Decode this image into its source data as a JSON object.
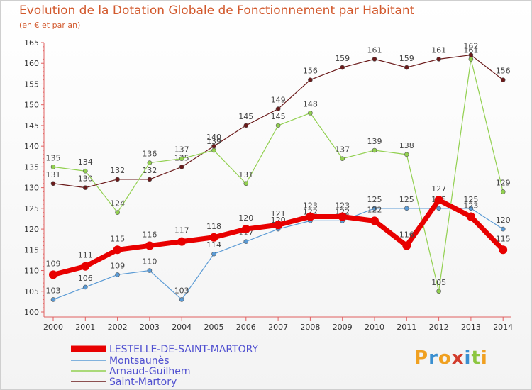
{
  "header": {
    "title": "Evolution de la Dotation Globale de Fonctionnement par Habitant",
    "subtitle": "(en € et par an)"
  },
  "logo": {
    "text": "Proxiti",
    "letters": [
      {
        "ch": "P",
        "color": "#f0a020"
      },
      {
        "ch": "r",
        "color": "#3a8fd0"
      },
      {
        "ch": "o",
        "color": "#f0a020"
      },
      {
        "ch": "x",
        "color": "#d23c2c"
      },
      {
        "ch": "i",
        "color": "#3a8fd0"
      },
      {
        "ch": "t",
        "color": "#8cc63f"
      },
      {
        "ch": "i",
        "color": "#f0a020"
      }
    ]
  },
  "chart_data": {
    "type": "line",
    "title": "Evolution de la Dotation Globale de Fonctionnement par Habitant",
    "subtitle": "(en € et par an)",
    "xlabel": "",
    "ylabel": "",
    "categories": [
      "2000",
      "2001",
      "2002",
      "2003",
      "2004",
      "2005",
      "2006",
      "2007",
      "2008",
      "2009",
      "2010",
      "2011",
      "2012",
      "2013",
      "2014"
    ],
    "ylim": [
      100,
      165
    ],
    "yticks": [
      100,
      105,
      110,
      115,
      120,
      125,
      130,
      135,
      140,
      145,
      150,
      155,
      160,
      165
    ],
    "grid": false,
    "legend": "bottom-left",
    "series": [
      {
        "name": "LESTELLE-DE-SAINT-MARTORY",
        "color": "#e80000",
        "values": [
          109,
          111,
          115,
          116,
          117,
          118,
          120,
          121,
          123,
          123,
          122,
          116,
          127,
          123,
          115
        ],
        "labels": [
          "109",
          "111",
          "115",
          "116",
          "117",
          "118",
          "120",
          "121",
          "123",
          "123",
          "122",
          "116",
          "127",
          "123",
          "115"
        ]
      },
      {
        "name": "Montsaunès",
        "color": "#5b9bd5",
        "values": [
          103,
          106,
          109,
          110,
          103,
          114,
          117,
          120,
          122,
          122,
          125,
          125,
          125,
          125,
          120
        ],
        "labels": [
          "103",
          "106",
          "109",
          "110",
          "103",
          "114",
          "117",
          "120",
          "122",
          "122",
          "125",
          "125",
          "125",
          "125",
          "120"
        ]
      },
      {
        "name": "Arnaud-Guilhem",
        "color": "#92d050",
        "values": [
          135,
          134,
          124,
          136,
          137,
          139,
          131,
          145,
          148,
          137,
          139,
          138,
          105,
          161,
          129
        ],
        "labels": [
          "135",
          "134",
          "124",
          "136",
          "137",
          "139",
          "131",
          "145",
          "148",
          "137",
          "139",
          "138",
          "105",
          "161",
          "129"
        ]
      },
      {
        "name": "Saint-Martory",
        "color": "#6b1b1b",
        "values": [
          131,
          130,
          132,
          132,
          135,
          140,
          145,
          149,
          156,
          159,
          161,
          159,
          161,
          162,
          156
        ],
        "labels": [
          "131",
          "130",
          "132",
          "132",
          "135",
          "140",
          "145",
          "149",
          "156",
          "159",
          "161",
          "159",
          "161",
          "162",
          "156"
        ]
      }
    ]
  }
}
